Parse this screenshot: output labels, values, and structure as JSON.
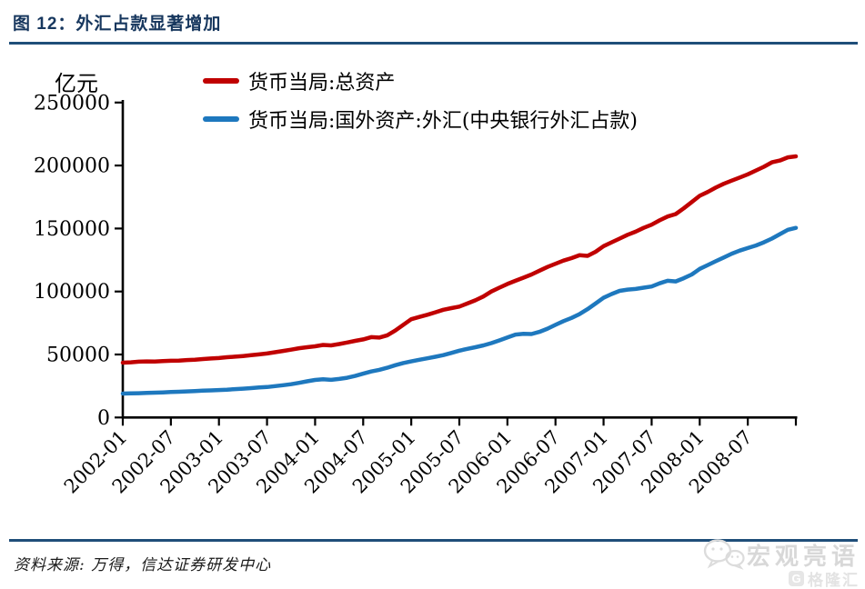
{
  "header": {
    "title": "图 12：外汇占款显著增加"
  },
  "footer": {
    "source": "资料来源: 万得，信达证券研发中心"
  },
  "watermark": {
    "brand": "宏观亮语",
    "logo_text": "格隆汇",
    "logo_letter": "G",
    "brand_color": "#d8d8d8",
    "logo_color": "#e3e3e3"
  },
  "chart_data": {
    "type": "line",
    "title": "图 12：外汇占款显著增加",
    "xlabel": "",
    "ylabel": "亿元",
    "ylim": [
      0,
      250000
    ],
    "yticks": [
      0,
      50000,
      100000,
      150000,
      200000,
      250000
    ],
    "xtick_labels": [
      "2002-01",
      "2002-07",
      "2003-01",
      "2003-07",
      "2004-01",
      "2004-07",
      "2005-01",
      "2005-07",
      "2006-01",
      "2006-07",
      "2007-01",
      "2007-07",
      "2008-01",
      "2008-07"
    ],
    "x_range": [
      "2002-01",
      "2009-01"
    ],
    "frequency": "monthly",
    "grid": false,
    "legend_position": "top",
    "axis_color": "#000000",
    "series": [
      {
        "name": "货币当局:总资产",
        "color": "#C00000",
        "values": [
          43500,
          43800,
          44300,
          44500,
          44400,
          44700,
          45000,
          45200,
          45600,
          45900,
          46400,
          46800,
          47200,
          47800,
          48300,
          48800,
          49400,
          50100,
          50800,
          51800,
          52800,
          53800,
          55000,
          55800,
          56500,
          57600,
          57200,
          58300,
          59500,
          60800,
          62000,
          63800,
          63400,
          65200,
          69000,
          73500,
          78000,
          79800,
          81500,
          83500,
          85500,
          86800,
          88000,
          90500,
          93000,
          96000,
          100000,
          103000,
          106000,
          108500,
          111000,
          113500,
          116500,
          119500,
          122000,
          124500,
          126500,
          128800,
          128300,
          131500,
          136000,
          139000,
          142000,
          145000,
          147500,
          150500,
          153000,
          156500,
          159500,
          161500,
          166000,
          171000,
          176000,
          179000,
          182500,
          185500,
          188000,
          190500,
          193000,
          196000,
          199000,
          202500,
          204000,
          206500,
          207300
        ]
      },
      {
        "name": "货币当局:国外资产:外汇(中央银行外汇占款)",
        "color": "#1E78BE",
        "values": [
          19000,
          19100,
          19300,
          19500,
          19700,
          19900,
          20200,
          20400,
          20700,
          21000,
          21300,
          21500,
          21800,
          22100,
          22500,
          22900,
          23300,
          23800,
          24200,
          24900,
          25600,
          26400,
          27500,
          28700,
          29800,
          30400,
          29900,
          30600,
          31500,
          33000,
          34800,
          36500,
          37800,
          39500,
          41500,
          43200,
          44500,
          45800,
          47000,
          48200,
          49500,
          51200,
          53000,
          54500,
          55800,
          57200,
          59000,
          61200,
          63500,
          65800,
          66400,
          66200,
          68000,
          70500,
          73500,
          76500,
          79000,
          82000,
          86000,
          90500,
          95000,
          98000,
          100500,
          101500,
          102000,
          103000,
          104000,
          106500,
          108500,
          108000,
          110500,
          113500,
          118000,
          121000,
          124000,
          127000,
          130000,
          132500,
          134500,
          136500,
          139000,
          142000,
          145500,
          149000,
          150500
        ]
      }
    ]
  }
}
